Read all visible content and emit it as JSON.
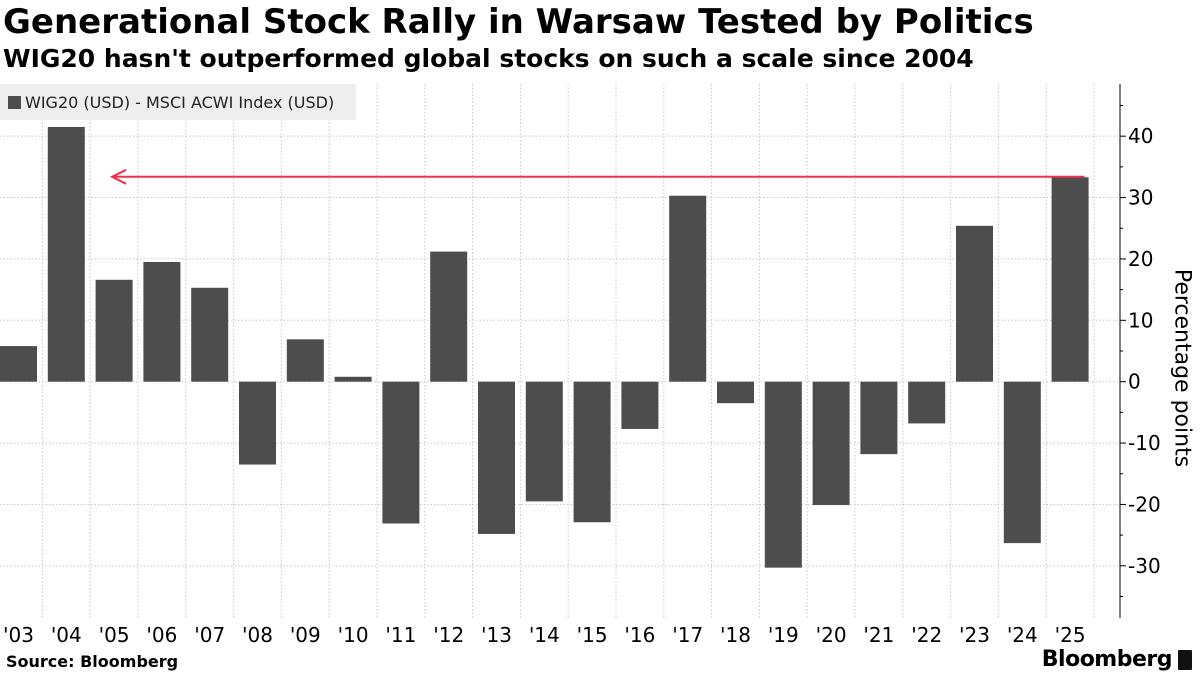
{
  "header": {
    "title": "Generational Stock Rally in Warsaw Tested by Politics",
    "subtitle": "WIG20 hasn't outperformed global stocks on such a scale since 2004"
  },
  "legend": {
    "label": "WIG20 (USD) - MSCI ACWI Index (USD)"
  },
  "footer": {
    "source": "Source: Bloomberg",
    "brand": "Bloomberg"
  },
  "chart_data": {
    "type": "bar",
    "title": "Generational Stock Rally in Warsaw Tested by Politics",
    "subtitle": "WIG20 hasn't outperformed global stocks on such a scale since 2004",
    "xlabel": "",
    "ylabel": "Percentage points",
    "categories": [
      "'03",
      "'04",
      "'05",
      "'06",
      "'07",
      "'08",
      "'09",
      "'10",
      "'11",
      "'12",
      "'13",
      "'14",
      "'15",
      "'16",
      "'17",
      "'18",
      "'19",
      "'20",
      "'21",
      "'22",
      "'23",
      "'24",
      "'25"
    ],
    "series": [
      {
        "name": "WIG20 (USD) - MSCI ACWI Index (USD)",
        "values": [
          5.8,
          41.5,
          16.6,
          19.5,
          15.3,
          -13.5,
          6.9,
          0.8,
          -23.1,
          21.2,
          -24.8,
          -19.5,
          -22.9,
          -7.7,
          30.3,
          -3.5,
          -30.3,
          -20.1,
          -11.8,
          -6.8,
          25.4,
          -26.3,
          33.3
        ]
      }
    ],
    "ylim": [
      -38.5,
      48.5
    ],
    "yticks": [
      40,
      30,
      20,
      10,
      0,
      -10,
      -20,
      -30
    ],
    "ytick_labels": [
      "40",
      "30",
      "20",
      "10",
      "0",
      "-10",
      "-20",
      "-30"
    ],
    "grid": true,
    "legend_position": "top-left",
    "annotation": {
      "type": "arrow",
      "from_category": "'25",
      "to_category": "'05",
      "value": 33.3,
      "color": "#e8344e"
    },
    "colors": {
      "bar": "#4d4d4d",
      "arrow": "#e8344e",
      "grid": "#c8c8c8",
      "axis": "#000000"
    }
  }
}
